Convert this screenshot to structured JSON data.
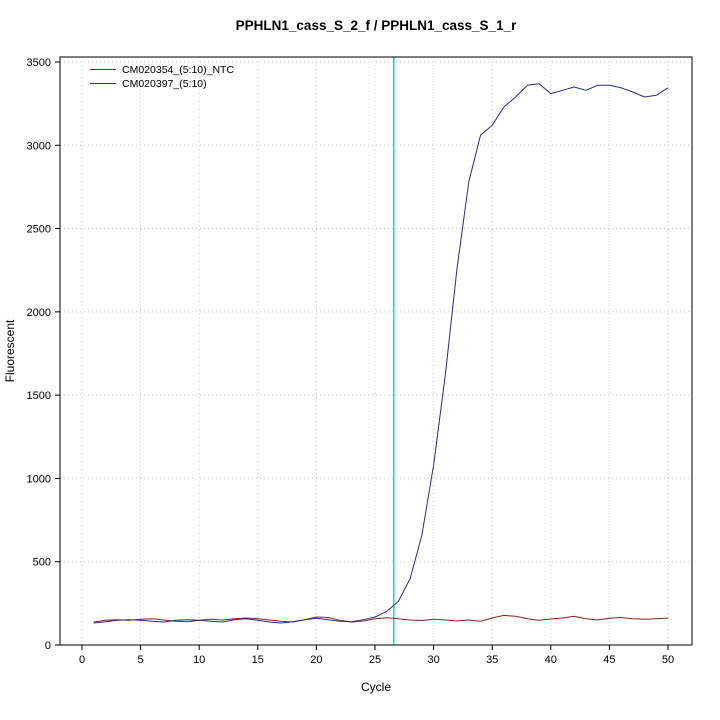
{
  "title": "PPHLN1_cass_S_2_f / PPHLN1_cass_S_1_r",
  "chart_data": {
    "type": "line",
    "title": "PPHLN1_cass_S_2_f / PPHLN1_cass_S_1_r",
    "xlabel": "Cycle",
    "ylabel": "Fluorescent",
    "xlim": [
      0,
      50
    ],
    "ylim": [
      0,
      3500
    ],
    "xticks": [
      0,
      5,
      10,
      15,
      20,
      25,
      30,
      35,
      40,
      45,
      50
    ],
    "yticks": [
      0,
      500,
      1000,
      1500,
      2000,
      2500,
      3000,
      3500
    ],
    "grid": "dotted",
    "legend_position": "top-left",
    "threshold_line": {
      "x": 26.6,
      "color": "#00e0e0"
    },
    "x": [
      1,
      2,
      3,
      4,
      5,
      6,
      7,
      8,
      9,
      10,
      11,
      12,
      13,
      14,
      15,
      16,
      17,
      18,
      19,
      20,
      21,
      22,
      23,
      24,
      25,
      26,
      27,
      28,
      29,
      30,
      31,
      32,
      33,
      34,
      35,
      36,
      37,
      38,
      39,
      40,
      41,
      42,
      43,
      44,
      45,
      46,
      47,
      48,
      49,
      50
    ],
    "series": [
      {
        "name": "CM020354_(5:10)_NTC",
        "color": "#8b2323",
        "values": [
          138,
          148,
          152,
          148,
          155,
          158,
          150,
          142,
          140,
          148,
          155,
          150,
          158,
          162,
          158,
          150,
          143,
          138,
          152,
          168,
          165,
          148,
          138,
          144,
          158,
          163,
          158,
          150,
          147,
          155,
          150,
          144,
          150,
          142,
          162,
          178,
          172,
          158,
          148,
          156,
          162,
          172,
          158,
          150,
          160,
          165,
          158,
          154,
          158,
          162
        ]
      },
      {
        "name": "CM020397_(5:10)",
        "color": "#2a2a8e",
        "values": [
          132,
          140,
          148,
          152,
          148,
          142,
          138,
          148,
          152,
          148,
          142,
          138,
          152,
          158,
          148,
          138,
          132,
          140,
          152,
          160,
          152,
          143,
          140,
          152,
          168,
          202,
          262,
          400,
          660,
          1080,
          1620,
          2260,
          2780,
          3060,
          3120,
          3230,
          3290,
          3360,
          3370,
          3310,
          3330,
          3350,
          3330,
          3360,
          3360,
          3345,
          3320,
          3290,
          3300,
          3345
        ]
      }
    ]
  }
}
